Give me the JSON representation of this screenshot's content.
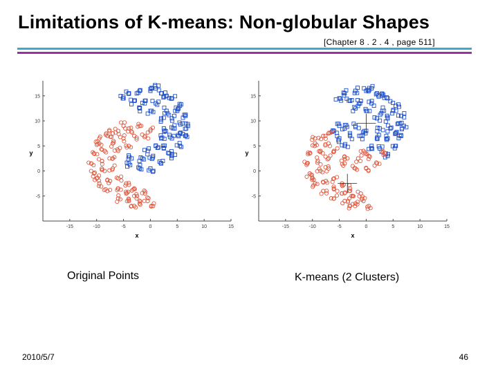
{
  "slide": {
    "title": "Limitations of K-means: Non-globular Shapes",
    "subtitle": "[Chapter 8 . 2 . 4 ,  page 511]",
    "footer_date": "2010/5/7",
    "page_number": "46",
    "rule_colors": [
      "#38a9d6",
      "#9b2fa3"
    ]
  },
  "chart_data": [
    {
      "type": "scatter",
      "caption": "Original Points",
      "xlabel": "x",
      "ylabel": "y",
      "xlim": [
        -20,
        15
      ],
      "ylim": [
        -10,
        18
      ],
      "xticks": [
        -15,
        -10,
        -5,
        0,
        5,
        10,
        15
      ],
      "yticks": [
        -5,
        0,
        5,
        10,
        15
      ],
      "grid": false,
      "series": [
        {
          "marker": "square",
          "color": "#2050c8",
          "values": [
            {
              "x": -4,
              "y": 15.5
            },
            {
              "x": -2,
              "y": 16
            },
            {
              "x": 0,
              "y": 16
            },
            {
              "x": 2,
              "y": 15.5
            },
            {
              "x": 4,
              "y": 14.5
            },
            {
              "x": 5.5,
              "y": 13
            },
            {
              "x": 6.5,
              "y": 11
            },
            {
              "x": 7,
              "y": 9
            },
            {
              "x": 6.5,
              "y": 7
            },
            {
              "x": 5.5,
              "y": 5
            },
            {
              "x": 4,
              "y": 3
            },
            {
              "x": 2,
              "y": 1.5
            },
            {
              "x": 0,
              "y": 0.5
            },
            {
              "x": -2,
              "y": 0.5
            },
            {
              "x": -4,
              "y": 1.5
            },
            {
              "x": -3,
              "y": 14
            },
            {
              "x": -1,
              "y": 14
            },
            {
              "x": 1,
              "y": 13.5
            },
            {
              "x": 3,
              "y": 12
            },
            {
              "x": 4,
              "y": 10.5
            },
            {
              "x": 4.5,
              "y": 8.5
            },
            {
              "x": 4,
              "y": 6.5
            },
            {
              "x": 2.5,
              "y": 4.5
            },
            {
              "x": 0.5,
              "y": 3
            },
            {
              "x": -1.5,
              "y": 2.5
            },
            {
              "x": -3.5,
              "y": 2.5
            },
            {
              "x": -2,
              "y": 12.5
            },
            {
              "x": 0,
              "y": 12
            },
            {
              "x": 2,
              "y": 10.5
            },
            {
              "x": 2.5,
              "y": 8.5
            },
            {
              "x": 2,
              "y": 6.5
            },
            {
              "x": 1,
              "y": 5
            },
            {
              "x": -0.5,
              "y": 4
            },
            {
              "x": 5,
              "y": 12
            },
            {
              "x": 6,
              "y": 9.5
            },
            {
              "x": 5.5,
              "y": 7.5
            },
            {
              "x": 3.5,
              "y": 3.5
            },
            {
              "x": -5,
              "y": 14.5
            },
            {
              "x": 3,
              "y": 15
            },
            {
              "x": 1,
              "y": 16.5
            }
          ]
        },
        {
          "marker": "circle",
          "color": "#e05a40",
          "values": [
            {
              "x": 0,
              "y": 8
            },
            {
              "x": -2,
              "y": 9
            },
            {
              "x": -4,
              "y": 8.5
            },
            {
              "x": -6,
              "y": 8
            },
            {
              "x": -8,
              "y": 7
            },
            {
              "x": -9.5,
              "y": 5.5
            },
            {
              "x": -10.5,
              "y": 3.5
            },
            {
              "x": -11,
              "y": 1.5
            },
            {
              "x": -10.5,
              "y": -0.5
            },
            {
              "x": -9.5,
              "y": -2.5
            },
            {
              "x": -8,
              "y": -4
            },
            {
              "x": -6,
              "y": -5.5
            },
            {
              "x": -4,
              "y": -6
            },
            {
              "x": -2,
              "y": -6.5
            },
            {
              "x": -0.5,
              "y": -6
            },
            {
              "x": -1,
              "y": 7
            },
            {
              "x": -3,
              "y": 7
            },
            {
              "x": -5,
              "y": 6.5
            },
            {
              "x": -7,
              "y": 5.5
            },
            {
              "x": -8.5,
              "y": 4
            },
            {
              "x": -9,
              "y": 2
            },
            {
              "x": -8.5,
              "y": 0
            },
            {
              "x": -7.5,
              "y": -2
            },
            {
              "x": -6,
              "y": -3.5
            },
            {
              "x": -4.5,
              "y": -4.5
            },
            {
              "x": -2.5,
              "y": -5
            },
            {
              "x": -4,
              "y": 5
            },
            {
              "x": -6,
              "y": 4
            },
            {
              "x": -7,
              "y": 2.5
            },
            {
              "x": -7,
              "y": 0.5
            },
            {
              "x": -6,
              "y": -1.5
            },
            {
              "x": -4.5,
              "y": -2.5
            },
            {
              "x": -3,
              "y": -3.5
            },
            {
              "x": -1,
              "y": -4.5
            },
            {
              "x": -9.5,
              "y": 6.5
            },
            {
              "x": -10,
              "y": -1.5
            },
            {
              "x": -5,
              "y": 9
            },
            {
              "x": -7,
              "y": 7.5
            },
            {
              "x": 0.5,
              "y": -7
            },
            {
              "x": -3,
              "y": -7
            }
          ]
        }
      ]
    },
    {
      "type": "scatter",
      "caption": "K-means (2 Clusters)",
      "xlabel": "x",
      "ylabel": "y",
      "xlim": [
        -20,
        15
      ],
      "ylim": [
        -10,
        18
      ],
      "xticks": [
        -15,
        -10,
        -5,
        0,
        5,
        10,
        15
      ],
      "yticks": [
        -5,
        0,
        5,
        10,
        15
      ],
      "grid": false,
      "centroids": [
        {
          "x": 0,
          "y": 9.5
        },
        {
          "x": -3.5,
          "y": -2.5
        }
      ],
      "series": [
        {
          "marker": "square",
          "color": "#2050c8",
          "values": [
            {
              "x": -4,
              "y": 15.5
            },
            {
              "x": -2,
              "y": 16
            },
            {
              "x": 0,
              "y": 16
            },
            {
              "x": 2,
              "y": 15.5
            },
            {
              "x": 4,
              "y": 14.5
            },
            {
              "x": 5.5,
              "y": 13
            },
            {
              "x": 6.5,
              "y": 11
            },
            {
              "x": 7,
              "y": 9
            },
            {
              "x": 6.5,
              "y": 7
            },
            {
              "x": 5.5,
              "y": 5
            },
            {
              "x": -3,
              "y": 14
            },
            {
              "x": -1,
              "y": 14
            },
            {
              "x": 1,
              "y": 13.5
            },
            {
              "x": 3,
              "y": 12
            },
            {
              "x": 4,
              "y": 10.5
            },
            {
              "x": 4.5,
              "y": 8.5
            },
            {
              "x": 4,
              "y": 6.5
            },
            {
              "x": -2,
              "y": 12.5
            },
            {
              "x": 0,
              "y": 12
            },
            {
              "x": 2,
              "y": 10.5
            },
            {
              "x": 2.5,
              "y": 8.5
            },
            {
              "x": 2,
              "y": 6.5
            },
            {
              "x": 5,
              "y": 12
            },
            {
              "x": 6,
              "y": 9.5
            },
            {
              "x": 5.5,
              "y": 7.5
            },
            {
              "x": -5,
              "y": 14.5
            },
            {
              "x": 3,
              "y": 15
            },
            {
              "x": 1,
              "y": 16.5
            },
            {
              "x": 0,
              "y": 8
            },
            {
              "x": -2,
              "y": 9
            },
            {
              "x": -4,
              "y": 8.5
            },
            {
              "x": -1,
              "y": 7
            },
            {
              "x": -3,
              "y": 7
            },
            {
              "x": -5,
              "y": 6.5
            },
            {
              "x": -5,
              "y": 9
            },
            {
              "x": -6,
              "y": 8
            },
            {
              "x": -4,
              "y": 5
            },
            {
              "x": 1,
              "y": 5
            },
            {
              "x": 4,
              "y": 3
            },
            {
              "x": 2.5,
              "y": 4.5
            }
          ]
        },
        {
          "marker": "circle",
          "color": "#e05a40",
          "values": [
            {
              "x": 2,
              "y": 1.5
            },
            {
              "x": 0,
              "y": 0.5
            },
            {
              "x": -2,
              "y": 0.5
            },
            {
              "x": -4,
              "y": 1.5
            },
            {
              "x": 0.5,
              "y": 3
            },
            {
              "x": -1.5,
              "y": 2.5
            },
            {
              "x": -3.5,
              "y": 2.5
            },
            {
              "x": -0.5,
              "y": 4
            },
            {
              "x": 3.5,
              "y": 3.5
            },
            {
              "x": -8,
              "y": 7
            },
            {
              "x": -9.5,
              "y": 5.5
            },
            {
              "x": -10.5,
              "y": 3.5
            },
            {
              "x": -11,
              "y": 1.5
            },
            {
              "x": -10.5,
              "y": -0.5
            },
            {
              "x": -9.5,
              "y": -2.5
            },
            {
              "x": -8,
              "y": -4
            },
            {
              "x": -6,
              "y": -5.5
            },
            {
              "x": -4,
              "y": -6
            },
            {
              "x": -2,
              "y": -6.5
            },
            {
              "x": -0.5,
              "y": -6
            },
            {
              "x": -7,
              "y": 5.5
            },
            {
              "x": -8.5,
              "y": 4
            },
            {
              "x": -9,
              "y": 2
            },
            {
              "x": -8.5,
              "y": 0
            },
            {
              "x": -7.5,
              "y": -2
            },
            {
              "x": -6,
              "y": -3.5
            },
            {
              "x": -4.5,
              "y": -4.5
            },
            {
              "x": -2.5,
              "y": -5
            },
            {
              "x": -6,
              "y": 4
            },
            {
              "x": -7,
              "y": 2.5
            },
            {
              "x": -7,
              "y": 0.5
            },
            {
              "x": -6,
              "y": -1.5
            },
            {
              "x": -4.5,
              "y": -2.5
            },
            {
              "x": -3,
              "y": -3.5
            },
            {
              "x": -1,
              "y": -4.5
            },
            {
              "x": -9.5,
              "y": 6.5
            },
            {
              "x": -10,
              "y": -1.5
            },
            {
              "x": -7,
              "y": 7.5
            },
            {
              "x": 0.5,
              "y": -7
            },
            {
              "x": -3,
              "y": -7
            }
          ]
        }
      ]
    }
  ]
}
